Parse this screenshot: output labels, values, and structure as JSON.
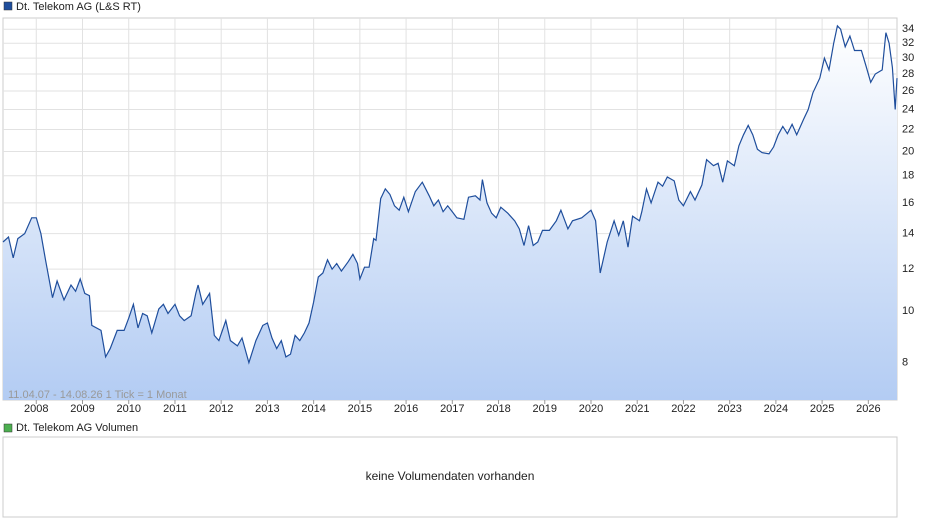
{
  "chart_data": {
    "type": "line",
    "annotation": "11.04.07 - 14.08.26   1 Tick = 1 Monat",
    "log_scale": true,
    "grid": true,
    "xlim": [
      2007.28,
      2026.62
    ],
    "xticks": [
      2008,
      2009,
      2010,
      2011,
      2012,
      2013,
      2014,
      2015,
      2016,
      2017,
      2018,
      2019,
      2020,
      2021,
      2022,
      2023,
      2024,
      2025,
      2026
    ],
    "ylim": [
      6.8,
      35.7
    ],
    "yticks": [
      8,
      10,
      12,
      14,
      16,
      18,
      20,
      22,
      24,
      26,
      28,
      30,
      32,
      34
    ],
    "x": [
      2007.28,
      2007.4,
      2007.5,
      2007.6,
      2007.75,
      2007.9,
      2008.0,
      2008.1,
      2008.2,
      2008.35,
      2008.45,
      2008.6,
      2008.75,
      2008.85,
      2008.95,
      2009.05,
      2009.15,
      2009.2,
      2009.4,
      2009.5,
      2009.6,
      2009.75,
      2009.9,
      2010.0,
      2010.1,
      2010.2,
      2010.3,
      2010.4,
      2010.5,
      2010.65,
      2010.75,
      2010.85,
      2011.0,
      2011.1,
      2011.2,
      2011.35,
      2011.45,
      2011.5,
      2011.6,
      2011.75,
      2011.85,
      2011.95,
      2012.1,
      2012.2,
      2012.35,
      2012.45,
      2012.6,
      2012.75,
      2012.9,
      2013.0,
      2013.1,
      2013.2,
      2013.3,
      2013.4,
      2013.5,
      2013.6,
      2013.7,
      2013.8,
      2013.9,
      2014.0,
      2014.1,
      2014.2,
      2014.3,
      2014.4,
      2014.5,
      2014.6,
      2014.75,
      2014.85,
      2014.95,
      2015.0,
      2015.1,
      2015.2,
      2015.3,
      2015.35,
      2015.45,
      2015.55,
      2015.65,
      2015.75,
      2015.85,
      2015.95,
      2016.05,
      2016.2,
      2016.35,
      2016.5,
      2016.6,
      2016.7,
      2016.8,
      2016.9,
      2017.0,
      2017.1,
      2017.25,
      2017.35,
      2017.5,
      2017.6,
      2017.65,
      2017.75,
      2017.85,
      2017.95,
      2018.05,
      2018.2,
      2018.35,
      2018.45,
      2018.55,
      2018.65,
      2018.75,
      2018.85,
      2018.95,
      2019.1,
      2019.25,
      2019.35,
      2019.5,
      2019.6,
      2019.8,
      2020.0,
      2020.1,
      2020.2,
      2020.35,
      2020.5,
      2020.6,
      2020.7,
      2020.8,
      2020.9,
      2021.05,
      2021.1,
      2021.2,
      2021.3,
      2021.45,
      2021.55,
      2021.65,
      2021.8,
      2021.9,
      2022.0,
      2022.15,
      2022.25,
      2022.4,
      2022.5,
      2022.65,
      2022.75,
      2022.85,
      2022.95,
      2023.1,
      2023.2,
      2023.3,
      2023.4,
      2023.5,
      2023.6,
      2023.7,
      2023.85,
      2023.95,
      2024.05,
      2024.15,
      2024.25,
      2024.35,
      2024.45,
      2024.6,
      2024.7,
      2024.8,
      2024.95,
      2025.05,
      2025.15,
      2025.25,
      2025.33,
      2025.4,
      2025.5,
      2025.6,
      2025.7,
      2025.85,
      2025.95,
      2026.05,
      2026.15,
      2026.3,
      2026.38,
      2026.45,
      2026.52,
      2026.58,
      2026.62
    ],
    "series": [
      {
        "name": "Dt. Telekom AG (L&S RT)",
        "color": "#1f4e9c",
        "values": [
          13.5,
          13.8,
          12.6,
          13.7,
          14,
          15,
          15,
          14,
          12.5,
          10.6,
          11.4,
          10.5,
          11.2,
          10.9,
          11.5,
          10.8,
          10.7,
          9.4,
          9.2,
          8.2,
          8.5,
          9.2,
          9.2,
          9.7,
          10.3,
          9.3,
          9.9,
          9.8,
          9.1,
          10.1,
          10.3,
          9.9,
          10.3,
          9.8,
          9.6,
          9.8,
          10.8,
          11.2,
          10.3,
          10.8,
          9.0,
          8.8,
          9.6,
          8.8,
          8.6,
          8.9,
          8.0,
          8.8,
          9.4,
          9.5,
          8.9,
          8.5,
          8.8,
          8.2,
          8.3,
          9.0,
          8.8,
          9.1,
          9.5,
          10.4,
          11.6,
          11.8,
          12.5,
          12.0,
          12.3,
          11.9,
          12.4,
          12.8,
          12.3,
          11.5,
          12.1,
          12.1,
          13.7,
          13.6,
          16.3,
          17.0,
          16.6,
          15.8,
          15.5,
          16.4,
          15.4,
          16.8,
          17.5,
          16.5,
          15.8,
          16.2,
          15.4,
          15.8,
          15.4,
          15.0,
          14.9,
          16.4,
          16.5,
          16.2,
          17.7,
          16.0,
          15.3,
          15.0,
          15.7,
          15.3,
          14.8,
          14.3,
          13.3,
          14.5,
          13.3,
          13.5,
          14.2,
          14.2,
          14.8,
          15.5,
          14.3,
          14.8,
          15.0,
          15.5,
          14.8,
          11.8,
          13.5,
          14.8,
          13.9,
          14.8,
          13.2,
          15.1,
          14.8,
          15.4,
          17.0,
          16.0,
          17.5,
          17.2,
          17.9,
          17.6,
          16.2,
          15.8,
          16.8,
          16.2,
          17.3,
          19.3,
          18.8,
          19.0,
          17.5,
          19.2,
          18.8,
          20.5,
          21.5,
          22.4,
          21.5,
          20.2,
          19.9,
          19.8,
          20.4,
          21.5,
          22.3,
          21.6,
          22.5,
          21.5,
          23.0,
          24.0,
          25.8,
          27.5,
          30.0,
          28.5,
          32.0,
          34.5,
          34.0,
          31.5,
          33.0,
          31.0,
          31.0,
          29.0,
          27.0,
          28.0,
          28.5,
          33.5,
          32.0,
          28.8,
          24.0,
          27.5
        ]
      }
    ]
  },
  "volume_panel": {
    "legend": "Dt. Telekom AG Volumen",
    "color": "#4caf50",
    "message": "keine Volumendaten vorhanden"
  }
}
